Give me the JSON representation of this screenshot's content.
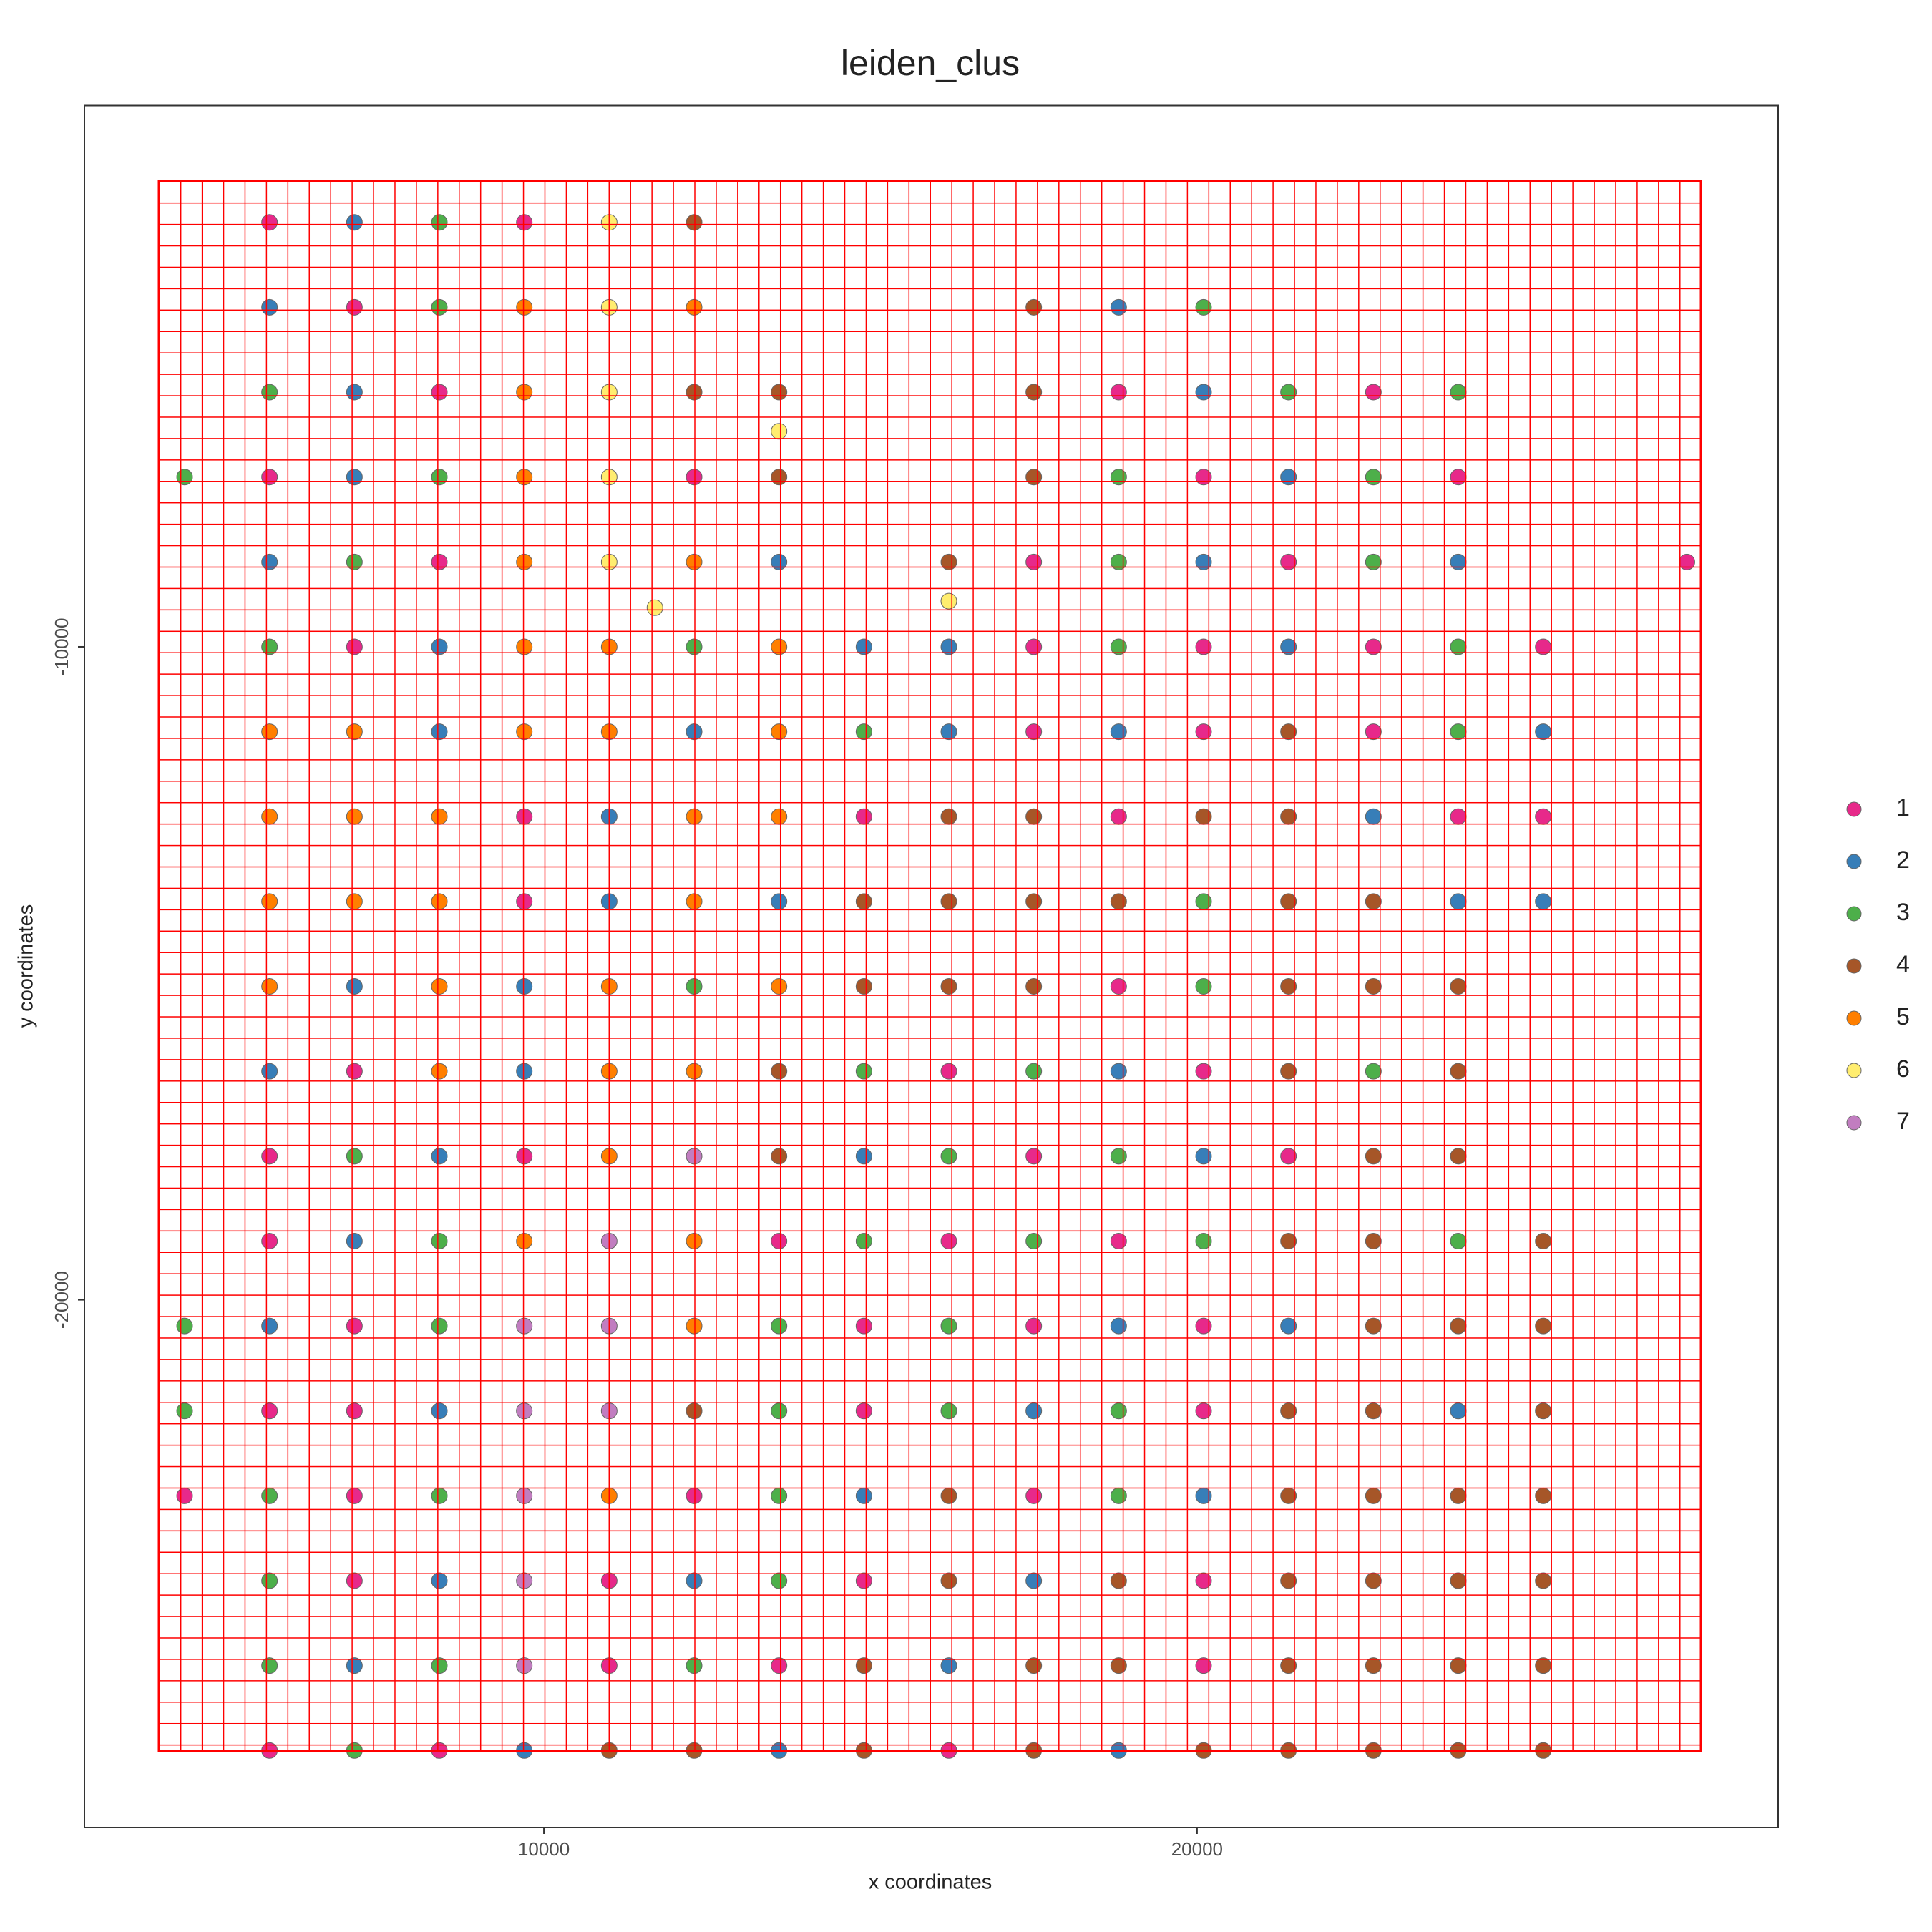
{
  "chart_data": {
    "type": "scatter",
    "title": "leiden_clus",
    "x_label": "x coordinates",
    "y_label": "y coordinates",
    "xlim": [
      2966,
      28897
    ],
    "ylim": [
      -28080,
      -1711
    ],
    "xticks": [
      10000,
      20000
    ],
    "yticks": [
      -10000,
      -20000
    ],
    "series": [
      {
        "name": "1",
        "color": "#e7298a",
        "x": [
          5800,
          9700,
          7100,
          8400,
          18800,
          22700,
          5800,
          12300,
          20100,
          24000,
          8400,
          17500,
          21400,
          27500,
          7100,
          17500,
          20100,
          22700,
          25300,
          17500,
          20100,
          22700,
          9700,
          14900,
          18800,
          24000,
          25300,
          9700,
          18800,
          7100,
          16200,
          20100,
          5800,
          9700,
          17500,
          21400,
          5800,
          13600,
          16200,
          18800,
          7100,
          14900,
          17500,
          20100,
          5800,
          7100,
          14900,
          20100,
          4500,
          7100,
          12300,
          17500,
          7100,
          11000,
          14900,
          20100,
          11000,
          13600,
          20100,
          5800,
          8400,
          16200
        ],
        "y": [
          -3500,
          -3500,
          -4800,
          -6100,
          -6100,
          -6100,
          -7400,
          -7400,
          -7400,
          -7400,
          -8700,
          -8700,
          -8700,
          -8700,
          -10000,
          -10000,
          -10000,
          -10000,
          -10000,
          -11300,
          -11300,
          -11300,
          -12600,
          -12600,
          -12600,
          -12600,
          -12600,
          -13900,
          -15200,
          -16500,
          -16500,
          -16500,
          -17800,
          -17800,
          -17800,
          -17800,
          -19100,
          -19100,
          -19100,
          -19100,
          -20400,
          -20400,
          -20400,
          -20400,
          -21700,
          -21700,
          -21700,
          -21700,
          -23000,
          -23000,
          -23000,
          -23000,
          -24300,
          -24300,
          -24300,
          -24300,
          -25600,
          -25600,
          -25600,
          -26900,
          -26900,
          -26900
        ]
      },
      {
        "name": "2",
        "color": "#377eb8",
        "x": [
          7100,
          5800,
          18800,
          7100,
          20100,
          7100,
          21400,
          5800,
          13600,
          20100,
          24000,
          8400,
          14900,
          16200,
          21400,
          8400,
          12300,
          16200,
          18800,
          25300,
          11000,
          22700,
          11000,
          13600,
          24000,
          25300,
          7100,
          9700,
          5800,
          9700,
          18800,
          8400,
          14900,
          20100,
          7100,
          5800,
          18800,
          21400,
          8400,
          17500,
          24000,
          14900,
          20100,
          8400,
          12300,
          17500,
          7100,
          16200,
          9700,
          13600,
          18800
        ],
        "y": [
          -3500,
          -4800,
          -4800,
          -6100,
          -6100,
          -7400,
          -7400,
          -8700,
          -8700,
          -8700,
          -8700,
          -10000,
          -10000,
          -10000,
          -10000,
          -11300,
          -11300,
          -11300,
          -11300,
          -11300,
          -12600,
          -12600,
          -13900,
          -13900,
          -13900,
          -13900,
          -15200,
          -15200,
          -16500,
          -16500,
          -16500,
          -17800,
          -17800,
          -17800,
          -19100,
          -20400,
          -20400,
          -20400,
          -21700,
          -21700,
          -21700,
          -23000,
          -23000,
          -24300,
          -24300,
          -24300,
          -25600,
          -25600,
          -26900,
          -26900,
          -26900
        ]
      },
      {
        "name": "3",
        "color": "#4daf4a",
        "x": [
          8400,
          8400,
          20100,
          5800,
          21400,
          24000,
          4500,
          8400,
          18800,
          22700,
          7100,
          18800,
          22700,
          5800,
          12300,
          18800,
          24000,
          14900,
          24000,
          20100,
          12300,
          20100,
          14900,
          17500,
          22700,
          7100,
          16200,
          18800,
          8400,
          14900,
          17500,
          20100,
          24000,
          4500,
          8400,
          13600,
          16200,
          4500,
          13600,
          16200,
          18800,
          5800,
          8400,
          13600,
          18800,
          5800,
          13600,
          5800,
          8400,
          12300,
          7100
        ],
        "y": [
          -3500,
          -4800,
          -4800,
          -6100,
          -6100,
          -6100,
          -7400,
          -7400,
          -7400,
          -7400,
          -8700,
          -8700,
          -8700,
          -10000,
          -10000,
          -10000,
          -10000,
          -11300,
          -11300,
          -13900,
          -15200,
          -15200,
          -16500,
          -16500,
          -16500,
          -17800,
          -17800,
          -17800,
          -19100,
          -19100,
          -19100,
          -19100,
          -19100,
          -20400,
          -20400,
          -20400,
          -20400,
          -21700,
          -21700,
          -21700,
          -21700,
          -23000,
          -23000,
          -23000,
          -23000,
          -24300,
          -24300,
          -25600,
          -25600,
          -25600,
          -26900
        ]
      },
      {
        "name": "4",
        "color": "#a65628",
        "x": [
          12300,
          17500,
          12300,
          13600,
          17500,
          13600,
          17500,
          16200,
          21400,
          16200,
          17500,
          20100,
          21400,
          14900,
          16200,
          17500,
          18800,
          21400,
          22700,
          14900,
          16200,
          17500,
          21400,
          22700,
          24000,
          13600,
          21400,
          24000,
          13600,
          22700,
          24000,
          21400,
          22700,
          25300,
          22700,
          24000,
          25300,
          12300,
          21400,
          22700,
          25300,
          16200,
          21400,
          22700,
          24000,
          25300,
          16200,
          18800,
          21400,
          22700,
          24000,
          25300,
          14900,
          17500,
          18800,
          21400,
          22700,
          24000,
          25300,
          11000,
          12300,
          14900,
          17500,
          20100,
          21400,
          22700,
          24000,
          25300
        ],
        "y": [
          -3500,
          -4800,
          -6100,
          -6100,
          -6100,
          -7400,
          -7400,
          -8700,
          -11300,
          -12600,
          -12600,
          -12600,
          -12600,
          -13900,
          -13900,
          -13900,
          -13900,
          -13900,
          -13900,
          -15200,
          -15200,
          -15200,
          -15200,
          -15200,
          -15200,
          -16500,
          -16500,
          -16500,
          -17800,
          -17800,
          -17800,
          -19100,
          -19100,
          -19100,
          -20400,
          -20400,
          -20400,
          -21700,
          -21700,
          -21700,
          -21700,
          -23000,
          -23000,
          -23000,
          -23000,
          -23000,
          -24300,
          -24300,
          -24300,
          -24300,
          -24300,
          -24300,
          -25600,
          -25600,
          -25600,
          -25600,
          -25600,
          -25600,
          -25600,
          -26900,
          -26900,
          -26900,
          -26900,
          -26900,
          -26900,
          -26900,
          -26900,
          -26900
        ]
      },
      {
        "name": "5",
        "color": "#ff7f00",
        "x": [
          9700,
          12300,
          9700,
          9700,
          9700,
          12300,
          9700,
          11000,
          13600,
          5800,
          7100,
          9700,
          11000,
          13600,
          5800,
          7100,
          8400,
          12300,
          13600,
          5800,
          7100,
          8400,
          12300,
          5800,
          8400,
          11000,
          13600,
          8400,
          11000,
          12300,
          11000,
          9700,
          12300,
          12300,
          11000
        ],
        "y": [
          -4800,
          -4800,
          -6100,
          -7400,
          -8700,
          -8700,
          -10000,
          -10000,
          -10000,
          -11300,
          -11300,
          -11300,
          -11300,
          -11300,
          -12600,
          -12600,
          -12600,
          -12600,
          -12600,
          -13900,
          -13900,
          -13900,
          -13900,
          -15200,
          -15200,
          -15200,
          -15200,
          -16500,
          -16500,
          -16500,
          -17800,
          -19100,
          -19100,
          -20400,
          -23000
        ]
      },
      {
        "name": "6",
        "color": "#ffed6f",
        "x": [
          11000,
          11000,
          11000,
          11000,
          11000,
          11700,
          13600,
          16200
        ],
        "y": [
          -3500,
          -4800,
          -6100,
          -7400,
          -8700,
          -9400,
          -6700,
          -9300
        ]
      },
      {
        "name": "7",
        "color": "#c17dc0",
        "x": [
          12300,
          11000,
          9700,
          11000,
          9700,
          11000,
          9700,
          9700,
          9700
        ],
        "y": [
          -17800,
          -19100,
          -20400,
          -20400,
          -21700,
          -21700,
          -23000,
          -24300,
          -25600
        ]
      }
    ]
  }
}
